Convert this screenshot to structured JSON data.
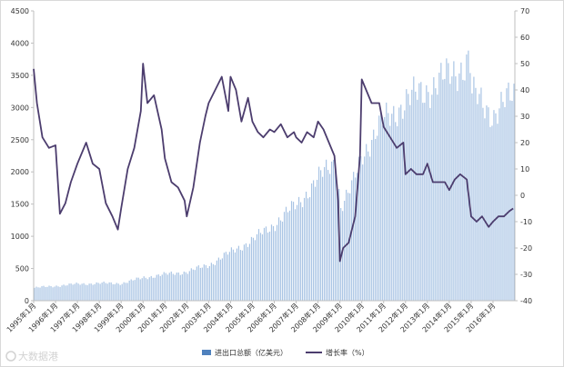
{
  "chart_data": {
    "type": "bar+line",
    "title": "",
    "x_labels": [
      "1995年1月",
      "1996年1月",
      "1997年1月",
      "1998年1月",
      "1999年1月",
      "2000年1月",
      "2001年1月",
      "2002年1月",
      "2003年1月",
      "2004年1月",
      "2005年1月",
      "2006年1月",
      "2007年1月",
      "2008年1月",
      "2009年1月",
      "2010年1月",
      "2011年1月",
      "2012年1月",
      "2013年1月",
      "2014年1月",
      "2015年1月",
      "2016年1月"
    ],
    "y_left": {
      "min": 0,
      "max": 4500,
      "ticks": [
        0,
        500,
        1000,
        1500,
        2000,
        2500,
        3000,
        3500,
        4000,
        4500
      ]
    },
    "y_right": {
      "min": -40,
      "max": 70,
      "ticks": [
        -40,
        -30,
        -20,
        -10,
        0,
        10,
        20,
        30,
        40,
        50,
        60,
        70
      ]
    },
    "series": [
      {
        "name": "进出口总额（亿美元）",
        "type": "bar",
        "axis": "left",
        "color": "#4f81bd",
        "anchors": [
          [
            1995.0,
            200
          ],
          [
            1996.0,
            230
          ],
          [
            1997.0,
            260
          ],
          [
            1998.0,
            270
          ],
          [
            1999.0,
            270
          ],
          [
            2000.0,
            360
          ],
          [
            2001.0,
            410
          ],
          [
            2002.0,
            450
          ],
          [
            2003.0,
            560
          ],
          [
            2004.0,
            760
          ],
          [
            2005.0,
            950
          ],
          [
            2006.0,
            1200
          ],
          [
            2007.0,
            1500
          ],
          [
            2008.0,
            1900
          ],
          [
            2008.75,
            2200
          ],
          [
            2009.0,
            1450
          ],
          [
            2009.5,
            1750
          ],
          [
            2010.0,
            2300
          ],
          [
            2011.0,
            2800
          ],
          [
            2012.0,
            3100
          ],
          [
            2013.0,
            3300
          ],
          [
            2014.0,
            3500
          ],
          [
            2014.9,
            3750
          ],
          [
            2015.0,
            3200
          ],
          [
            2016.0,
            2900
          ],
          [
            2016.92,
            3200
          ]
        ]
      },
      {
        "name": "增长率（%）",
        "type": "line",
        "axis": "right",
        "color": "#4c3d6e",
        "anchors": [
          [
            1995.0,
            48
          ],
          [
            1995.15,
            35
          ],
          [
            1995.4,
            22
          ],
          [
            1995.7,
            18
          ],
          [
            1996.0,
            19
          ],
          [
            1996.2,
            -7
          ],
          [
            1996.45,
            -3
          ],
          [
            1996.7,
            5
          ],
          [
            1997.0,
            12
          ],
          [
            1997.4,
            20
          ],
          [
            1997.7,
            12
          ],
          [
            1998.0,
            10
          ],
          [
            1998.3,
            -3
          ],
          [
            1998.6,
            -8
          ],
          [
            1998.85,
            -13
          ],
          [
            1999.0,
            -5
          ],
          [
            1999.3,
            10
          ],
          [
            1999.6,
            18
          ],
          [
            1999.9,
            32
          ],
          [
            2000.0,
            50
          ],
          [
            2000.2,
            35
          ],
          [
            2000.5,
            38
          ],
          [
            2000.85,
            25
          ],
          [
            2001.0,
            14
          ],
          [
            2001.3,
            5
          ],
          [
            2001.6,
            3
          ],
          [
            2001.9,
            -2
          ],
          [
            2002.0,
            -8
          ],
          [
            2002.3,
            3
          ],
          [
            2002.6,
            20
          ],
          [
            2002.85,
            30
          ],
          [
            2003.0,
            35
          ],
          [
            2003.3,
            40
          ],
          [
            2003.6,
            45
          ],
          [
            2003.9,
            32
          ],
          [
            2004.0,
            45
          ],
          [
            2004.25,
            40
          ],
          [
            2004.5,
            28
          ],
          [
            2004.8,
            37
          ],
          [
            2005.0,
            28
          ],
          [
            2005.25,
            24
          ],
          [
            2005.5,
            22
          ],
          [
            2005.8,
            25
          ],
          [
            2006.0,
            24
          ],
          [
            2006.3,
            27
          ],
          [
            2006.6,
            22
          ],
          [
            2006.9,
            24
          ],
          [
            2007.0,
            22
          ],
          [
            2007.25,
            20
          ],
          [
            2007.5,
            24
          ],
          [
            2007.8,
            22
          ],
          [
            2008.0,
            28
          ],
          [
            2008.25,
            25
          ],
          [
            2008.5,
            20
          ],
          [
            2008.75,
            15
          ],
          [
            2008.92,
            -2
          ],
          [
            2009.0,
            -25
          ],
          [
            2009.15,
            -20
          ],
          [
            2009.4,
            -18
          ],
          [
            2009.7,
            -8
          ],
          [
            2009.92,
            15
          ],
          [
            2010.0,
            44
          ],
          [
            2010.2,
            40
          ],
          [
            2010.45,
            35
          ],
          [
            2010.8,
            35
          ],
          [
            2011.0,
            26
          ],
          [
            2011.3,
            22
          ],
          [
            2011.6,
            18
          ],
          [
            2011.9,
            20
          ],
          [
            2012.0,
            8
          ],
          [
            2012.25,
            10
          ],
          [
            2012.5,
            8
          ],
          [
            2012.8,
            8
          ],
          [
            2013.0,
            12
          ],
          [
            2013.25,
            5
          ],
          [
            2013.5,
            5
          ],
          [
            2013.8,
            5
          ],
          [
            2014.0,
            2
          ],
          [
            2014.25,
            6
          ],
          [
            2014.5,
            8
          ],
          [
            2014.8,
            6
          ],
          [
            2015.0,
            -8
          ],
          [
            2015.25,
            -10
          ],
          [
            2015.5,
            -8
          ],
          [
            2015.8,
            -12
          ],
          [
            2016.0,
            -10
          ],
          [
            2016.25,
            -8
          ],
          [
            2016.5,
            -8
          ],
          [
            2016.75,
            -6
          ],
          [
            2016.92,
            -5
          ]
        ]
      }
    ],
    "legend": {
      "position": "bottom"
    }
  },
  "watermark": {
    "text": "大数据港"
  }
}
